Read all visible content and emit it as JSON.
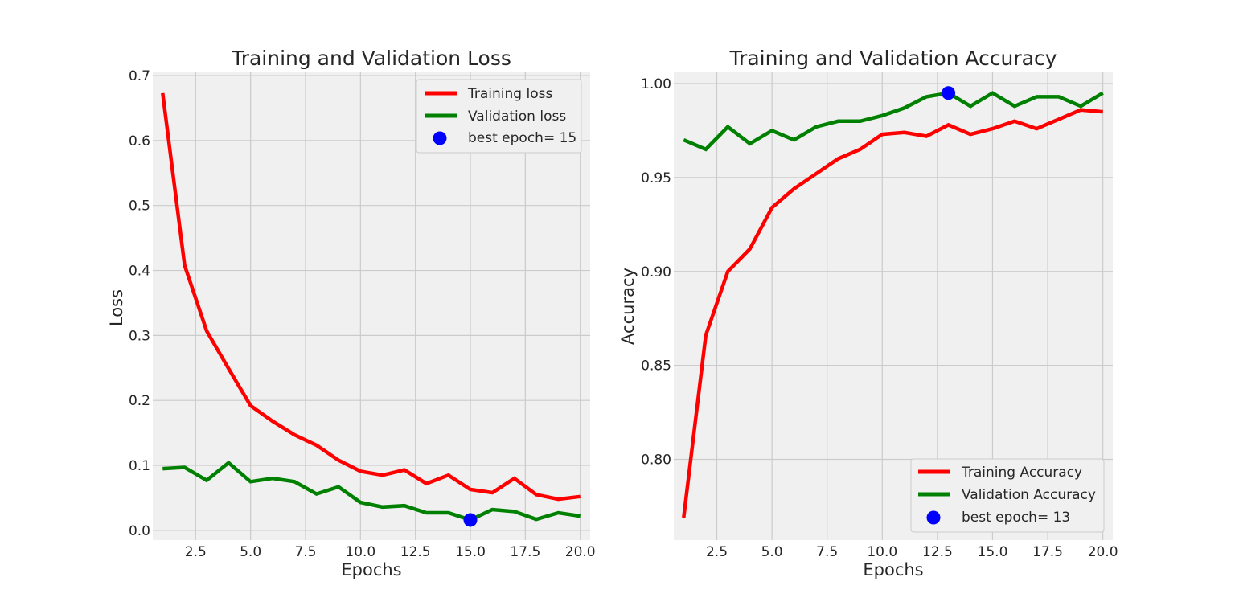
{
  "chart_data": [
    {
      "type": "line",
      "title": "Training and Validation Loss",
      "xlabel": "Epochs",
      "ylabel": "Loss",
      "xlim": [
        0.55,
        20.45
      ],
      "ylim": [
        -0.015,
        0.705
      ],
      "xticks": [
        2.5,
        5.0,
        7.5,
        10.0,
        12.5,
        15.0,
        17.5,
        20.0
      ],
      "xtick_labels": [
        "2.5",
        "5.0",
        "7.5",
        "10.0",
        "12.5",
        "15.0",
        "17.5",
        "20.0"
      ],
      "yticks": [
        0.0,
        0.1,
        0.2,
        0.3,
        0.4,
        0.5,
        0.6,
        0.7
      ],
      "ytick_labels": [
        "0.0",
        "0.1",
        "0.2",
        "0.3",
        "0.4",
        "0.5",
        "0.6",
        "0.7"
      ],
      "grid": true,
      "legend_position": "top-right",
      "x": [
        1,
        2,
        3,
        4,
        5,
        6,
        7,
        8,
        9,
        10,
        11,
        12,
        13,
        14,
        15,
        16,
        17,
        18,
        19,
        20
      ],
      "series": [
        {
          "name": "Training loss",
          "color": "#ff0000",
          "values": [
            0.673,
            0.408,
            0.307,
            0.249,
            0.192,
            0.168,
            0.147,
            0.131,
            0.108,
            0.091,
            0.085,
            0.093,
            0.072,
            0.085,
            0.063,
            0.058,
            0.08,
            0.055,
            0.048,
            0.052
          ]
        },
        {
          "name": "Validation loss",
          "color": "#008000",
          "values": [
            0.095,
            0.097,
            0.077,
            0.104,
            0.075,
            0.08,
            0.075,
            0.056,
            0.067,
            0.043,
            0.036,
            0.038,
            0.027,
            0.027,
            0.016,
            0.032,
            0.029,
            0.017,
            0.027,
            0.022
          ]
        }
      ],
      "best_point": {
        "name": "best epoch= 15",
        "x": 15,
        "y": 0.016,
        "color": "#0000ff"
      }
    },
    {
      "type": "line",
      "title": "Training and Validation Accuracy",
      "xlabel": "Epochs",
      "ylabel": "Accuracy",
      "xlim": [
        0.55,
        20.45
      ],
      "ylim": [
        0.757,
        1.006
      ],
      "xticks": [
        2.5,
        5.0,
        7.5,
        10.0,
        12.5,
        15.0,
        17.5,
        20.0
      ],
      "xtick_labels": [
        "2.5",
        "5.0",
        "7.5",
        "10.0",
        "12.5",
        "15.0",
        "17.5",
        "20.0"
      ],
      "yticks": [
        0.8,
        0.85,
        0.9,
        0.95,
        1.0
      ],
      "ytick_labels": [
        "0.80",
        "0.85",
        "0.90",
        "0.95",
        "1.00"
      ],
      "grid": true,
      "legend_position": "bottom-right",
      "x": [
        1,
        2,
        3,
        4,
        5,
        6,
        7,
        8,
        9,
        10,
        11,
        12,
        13,
        14,
        15,
        16,
        17,
        18,
        19,
        20
      ],
      "series": [
        {
          "name": "Training Accuracy",
          "color": "#ff0000",
          "values": [
            0.769,
            0.866,
            0.9,
            0.912,
            0.934,
            0.944,
            0.952,
            0.96,
            0.965,
            0.973,
            0.974,
            0.972,
            0.978,
            0.973,
            0.976,
            0.98,
            0.976,
            0.981,
            0.986,
            0.985
          ]
        },
        {
          "name": "Validation Accuracy",
          "color": "#008000",
          "values": [
            0.97,
            0.965,
            0.977,
            0.968,
            0.975,
            0.97,
            0.977,
            0.98,
            0.98,
            0.983,
            0.987,
            0.993,
            0.995,
            0.988,
            0.995,
            0.988,
            0.993,
            0.993,
            0.988,
            0.995
          ]
        }
      ],
      "best_point": {
        "name": "best epoch= 13",
        "x": 13,
        "y": 0.995,
        "color": "#0000ff"
      }
    }
  ],
  "style": {
    "plot_background": "#f0f0f0",
    "grid_color": "#cbcbcb"
  }
}
